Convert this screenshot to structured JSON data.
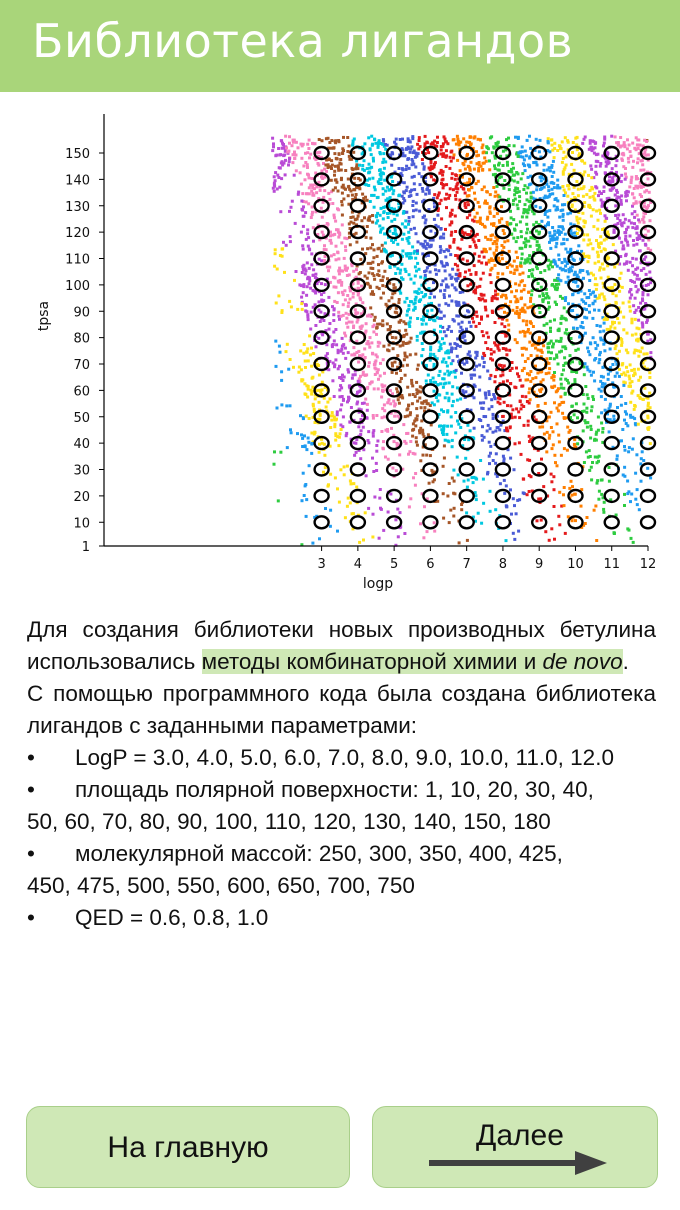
{
  "header": {
    "title": "Библиотека лигандов"
  },
  "chart_data": {
    "type": "scatter",
    "xlabel": "logp",
    "ylabel": "tpsa",
    "x_ticks": [
      3,
      4,
      5,
      6,
      7,
      8,
      9,
      10,
      11,
      12
    ],
    "y_ticks": [
      1,
      10,
      20,
      30,
      40,
      50,
      60,
      70,
      80,
      90,
      100,
      110,
      120,
      130,
      140,
      150
    ],
    "grid_targets": {
      "logp": [
        3,
        4,
        5,
        6,
        7,
        8,
        9,
        10,
        11,
        12
      ],
      "tpsa": [
        10,
        20,
        30,
        40,
        50,
        60,
        70,
        80,
        90,
        100,
        110,
        120,
        130,
        140,
        150
      ]
    },
    "grid": false,
    "marker_colors": [
      "#e41a1c",
      "#ff7f00",
      "#2ecc40",
      "#1f9bf0",
      "#ffe11a",
      "#b94bd6",
      "#f781bf",
      "#a65628",
      "#00c8e0",
      "#4a5bd6"
    ]
  },
  "body": {
    "p1_a": "Для создания библиотеки новых производных бетулина использовались ",
    "p1_hl": "методы комбинаторной химии и ",
    "p1_em": "de novo",
    "p1_end": ".",
    "p2": " С помощью программного кода была создана библиотека лигандов с заданными параметрами:",
    "bullets": [
      {
        "first": "LogP = 3.0, 4.0, 5.0, 6.0, 7.0, 8.0, 9.0, 10.0, 11.0, 12.0",
        "rest": ""
      },
      {
        "first": "площадь полярной поверхности: 1, 10, 20, 30, 40,",
        "rest": "50, 60, 70, 80, 90, 100, 110, 120, 130, 140, 150, 180"
      },
      {
        "first": "молекулярной массой: 250, 300, 350, 400, 425,",
        "rest": "450, 475, 500, 550, 600, 650, 700, 750"
      },
      {
        "first": "QED = 0.6, 0.8, 1.0",
        "rest": ""
      }
    ],
    "bullet_symbol": "•"
  },
  "buttons": {
    "home": "На главную",
    "next": "Далее"
  }
}
